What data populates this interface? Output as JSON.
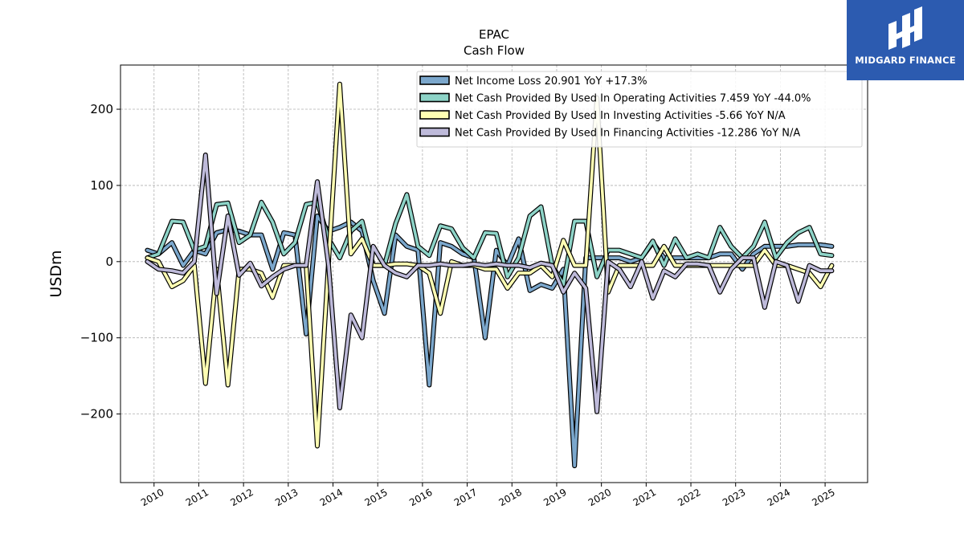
{
  "chart_data": {
    "type": "line",
    "title": "EPAC",
    "subtitle": "Cash Flow",
    "xlabel": "",
    "ylabel": "USDm",
    "xlim": [
      2009.25,
      2025.95
    ],
    "ylim": [
      -290,
      258
    ],
    "yticks": [
      -200,
      -100,
      0,
      100,
      200
    ],
    "ytick_labels": [
      "−200",
      "−100",
      "0",
      "100",
      "200"
    ],
    "xticks": [
      2010,
      2011,
      2012,
      2013,
      2014,
      2015,
      2016,
      2017,
      2018,
      2019,
      2020,
      2021,
      2022,
      2023,
      2024,
      2025
    ],
    "xtick_labels": [
      "2010",
      "2011",
      "2012",
      "2013",
      "2014",
      "2015",
      "2016",
      "2017",
      "2018",
      "2019",
      "2020",
      "2021",
      "2022",
      "2023",
      "2024",
      "2025"
    ],
    "grid": true,
    "legend_position": "top-right",
    "series": [
      {
        "name": "Net Income Loss  20.901 YoY +17.3%",
        "color": "#7ba7cc",
        "x": [
          2009.85,
          2010.1,
          2010.4,
          2010.65,
          2010.9,
          2011.15,
          2011.4,
          2011.65,
          2011.9,
          2012.15,
          2012.4,
          2012.65,
          2012.9,
          2013.15,
          2013.4,
          2013.65,
          2013.9,
          2014.15,
          2014.4,
          2014.65,
          2014.9,
          2015.15,
          2015.4,
          2015.65,
          2015.9,
          2016.15,
          2016.4,
          2016.65,
          2016.9,
          2017.15,
          2017.4,
          2017.65,
          2017.9,
          2018.15,
          2018.4,
          2018.65,
          2018.9,
          2019.15,
          2019.4,
          2019.65,
          2019.9,
          2020.15,
          2020.4,
          2020.65,
          2020.9,
          2021.15,
          2021.4,
          2021.65,
          2021.9,
          2022.15,
          2022.4,
          2022.65,
          2022.9,
          2023.15,
          2023.4,
          2023.65,
          2023.9,
          2024.15,
          2024.4,
          2024.65,
          2024.9,
          2025.15
        ],
        "y": [
          15,
          10,
          25,
          -5,
          15,
          10,
          38,
          42,
          40,
          35,
          35,
          -10,
          38,
          35,
          -95,
          60,
          40,
          45,
          52,
          40,
          -25,
          -68,
          35,
          20,
          15,
          -162,
          25,
          20,
          10,
          5,
          -100,
          15,
          -5,
          30,
          -38,
          -30,
          -35,
          -10,
          -268,
          5,
          5,
          5,
          5,
          0,
          5,
          25,
          5,
          5,
          5,
          5,
          5,
          10,
          10,
          -10,
          10,
          20,
          20,
          20,
          22,
          22,
          22,
          20
        ]
      },
      {
        "name": "Net Cash Provided By Used In Operating Activities  7.459 YoY -44.0%",
        "color": "#8dd3c7",
        "x": [
          2009.85,
          2010.1,
          2010.4,
          2010.65,
          2010.9,
          2011.15,
          2011.4,
          2011.65,
          2011.9,
          2012.15,
          2012.4,
          2012.65,
          2012.9,
          2013.15,
          2013.4,
          2013.65,
          2013.9,
          2014.15,
          2014.4,
          2014.65,
          2014.9,
          2015.15,
          2015.4,
          2015.65,
          2015.9,
          2016.15,
          2016.4,
          2016.65,
          2016.9,
          2017.15,
          2017.4,
          2017.65,
          2017.9,
          2018.15,
          2018.4,
          2018.65,
          2018.9,
          2019.15,
          2019.4,
          2019.65,
          2019.9,
          2020.15,
          2020.4,
          2020.65,
          2020.9,
          2021.15,
          2021.4,
          2021.65,
          2021.9,
          2022.15,
          2022.4,
          2022.65,
          2022.9,
          2023.15,
          2023.4,
          2023.65,
          2023.9,
          2024.15,
          2024.4,
          2024.65,
          2024.9,
          2025.15
        ],
        "y": [
          5,
          10,
          53,
          52,
          15,
          20,
          75,
          77,
          25,
          35,
          78,
          52,
          10,
          25,
          75,
          78,
          30,
          5,
          40,
          53,
          -5,
          -5,
          50,
          88,
          20,
          8,
          47,
          43,
          18,
          5,
          38,
          37,
          -20,
          5,
          60,
          72,
          -5,
          -30,
          53,
          53,
          -20,
          15,
          15,
          10,
          5,
          27,
          -5,
          30,
          5,
          10,
          5,
          45,
          20,
          5,
          20,
          52,
          5,
          25,
          38,
          45,
          10,
          8
        ]
      },
      {
        "name": "Net Cash Provided By Used In Investing Activities  -5.66 YoY N/A",
        "color": "#ffffb3",
        "x": [
          2009.85,
          2010.1,
          2010.4,
          2010.65,
          2010.9,
          2011.15,
          2011.4,
          2011.65,
          2011.9,
          2012.15,
          2012.4,
          2012.65,
          2012.9,
          2013.15,
          2013.4,
          2013.65,
          2013.9,
          2014.15,
          2014.4,
          2014.65,
          2014.9,
          2015.15,
          2015.4,
          2015.65,
          2015.9,
          2016.15,
          2016.4,
          2016.65,
          2016.9,
          2017.15,
          2017.4,
          2017.65,
          2017.9,
          2018.15,
          2018.4,
          2018.65,
          2018.9,
          2019.15,
          2019.4,
          2019.65,
          2019.9,
          2020.15,
          2020.4,
          2020.65,
          2020.9,
          2021.15,
          2021.4,
          2021.65,
          2021.9,
          2022.15,
          2022.4,
          2022.65,
          2022.9,
          2023.15,
          2023.4,
          2023.65,
          2023.9,
          2024.15,
          2024.4,
          2024.65,
          2024.9,
          2025.15
        ],
        "y": [
          5,
          0,
          -33,
          -25,
          -5,
          -160,
          -10,
          -162,
          -10,
          -10,
          -15,
          -47,
          -5,
          -5,
          -5,
          -242,
          0,
          233,
          10,
          30,
          -5,
          -5,
          -3,
          -3,
          -5,
          -15,
          -68,
          0,
          -5,
          -5,
          -10,
          -10,
          -35,
          -15,
          -15,
          -5,
          -20,
          28,
          -5,
          -5,
          215,
          -40,
          -5,
          -5,
          -5,
          -5,
          20,
          -5,
          -5,
          -5,
          -5,
          -5,
          -5,
          -5,
          -5,
          15,
          -5,
          -5,
          -10,
          -15,
          -33,
          -5
        ]
      },
      {
        "name": "Net Cash Provided By Used In Financing Activities  -12.286 YoY N/A",
        "color": "#bebada",
        "x": [
          2009.85,
          2010.1,
          2010.4,
          2010.65,
          2010.9,
          2011.15,
          2011.4,
          2011.65,
          2011.9,
          2012.15,
          2012.4,
          2012.65,
          2012.9,
          2013.15,
          2013.4,
          2013.65,
          2013.9,
          2014.15,
          2014.4,
          2014.65,
          2014.9,
          2015.15,
          2015.4,
          2015.65,
          2015.9,
          2016.15,
          2016.4,
          2016.65,
          2016.9,
          2017.15,
          2017.4,
          2017.65,
          2017.9,
          2018.15,
          2018.4,
          2018.65,
          2018.9,
          2019.15,
          2019.4,
          2019.65,
          2019.9,
          2020.15,
          2020.4,
          2020.65,
          2020.9,
          2021.15,
          2021.4,
          2021.65,
          2021.9,
          2022.15,
          2022.4,
          2022.65,
          2022.9,
          2023.15,
          2023.4,
          2023.65,
          2023.9,
          2024.15,
          2024.4,
          2024.65,
          2024.9,
          2025.15
        ],
        "y": [
          0,
          -10,
          -12,
          -15,
          0,
          140,
          -42,
          60,
          -18,
          -2,
          -32,
          -20,
          -10,
          -5,
          -5,
          105,
          -5,
          -192,
          -70,
          -100,
          20,
          -5,
          -15,
          -20,
          -5,
          -5,
          -3,
          -5,
          -5,
          -3,
          -5,
          -3,
          -5,
          -5,
          -8,
          -2,
          -5,
          -40,
          -15,
          -35,
          -197,
          0,
          -10,
          -33,
          0,
          -48,
          -12,
          -20,
          -3,
          -3,
          -5,
          -40,
          -10,
          5,
          5,
          -60,
          0,
          -5,
          -52,
          -5,
          -12,
          -12
        ]
      }
    ]
  },
  "logo": {
    "text": "MIDGARD FINANCE",
    "background": "#2c5bb0"
  }
}
